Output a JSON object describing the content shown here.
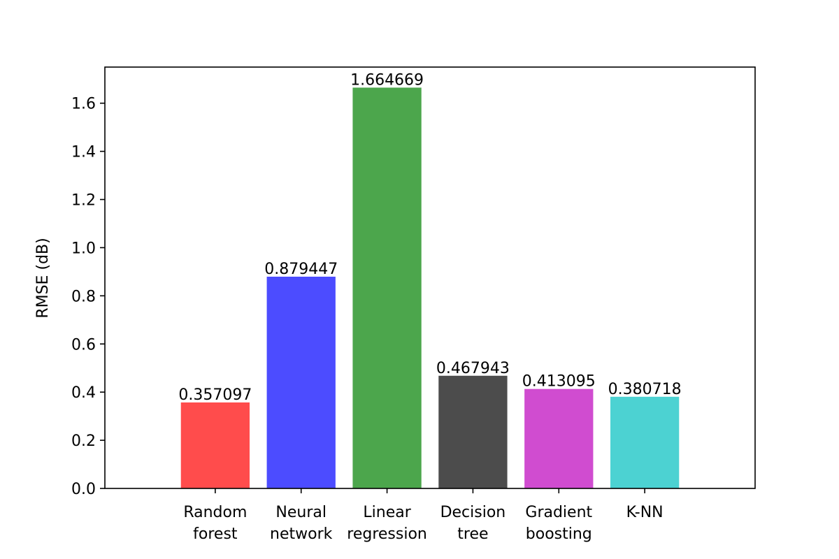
{
  "chart_data": {
    "type": "bar",
    "title": "",
    "xlabel": "",
    "ylabel": "RMSE (dB)",
    "ylim": [
      0,
      1.75
    ],
    "yticks": [
      0.0,
      0.2,
      0.4,
      0.6,
      0.8,
      1.0,
      1.2,
      1.4,
      1.6
    ],
    "ytick_labels": [
      "0.0",
      "0.2",
      "0.4",
      "0.6",
      "0.8",
      "1.0",
      "1.2",
      "1.4",
      "1.6"
    ],
    "grid": false,
    "categories": [
      [
        "Random",
        "forest"
      ],
      [
        "Neural",
        "network"
      ],
      [
        "Linear",
        "regression"
      ],
      [
        "Decision",
        "tree"
      ],
      [
        "Gradient",
        "boosting"
      ],
      [
        "K-NN"
      ]
    ],
    "values": [
      0.357097,
      0.879447,
      1.664669,
      0.467943,
      0.413095,
      0.380718
    ],
    "value_labels": [
      "0.357097",
      "0.879447",
      "1.664669",
      "0.467943",
      "0.413095",
      "0.380718"
    ],
    "colors": [
      "#ff4c4c",
      "#4c4cff",
      "#4ca64c",
      "#4c4c4c",
      "#d04cd0",
      "#4cd2d2"
    ]
  }
}
